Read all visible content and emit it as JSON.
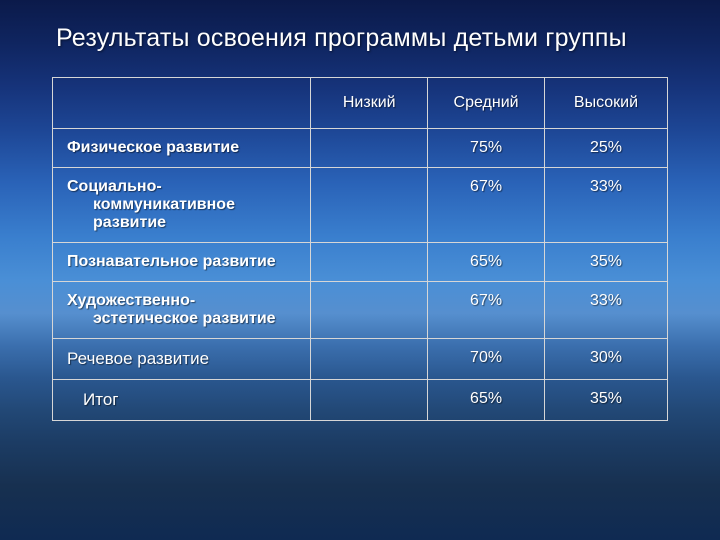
{
  "title": "Результаты освоения программы детьми группы",
  "table": {
    "headers": {
      "blank": "",
      "low": "Низкий",
      "mid": "Средний",
      "high": "Высокий"
    },
    "rows": [
      {
        "label_lines": [
          "Физическое развитие"
        ],
        "low": "",
        "mid": "75%",
        "high": "25%",
        "multi": false,
        "special": ""
      },
      {
        "label_lines": [
          "Социально-",
          "коммуникативное",
          "развитие"
        ],
        "low": "",
        "mid": "67%",
        "high": "33%",
        "multi": true,
        "special": ""
      },
      {
        "label_lines": [
          "Познавательное развитие"
        ],
        "low": "",
        "mid": "65%",
        "high": "35%",
        "multi": false,
        "special": ""
      },
      {
        "label_lines": [
          "Художественно-",
          "эстетическое развитие"
        ],
        "low": "",
        "mid": "67%",
        "high": "33%",
        "multi": true,
        "special": ""
      },
      {
        "label_lines": [
          "Речевое развитие"
        ],
        "low": "",
        "mid": "70%",
        "high": "30%",
        "multi": false,
        "special": "speech"
      },
      {
        "label_lines": [
          "Итог"
        ],
        "low": "",
        "mid": "65%",
        "high": "35%",
        "multi": false,
        "special": "itog"
      }
    ]
  },
  "colors": {
    "text": "#ffffff",
    "border": "#d6d6d6"
  }
}
